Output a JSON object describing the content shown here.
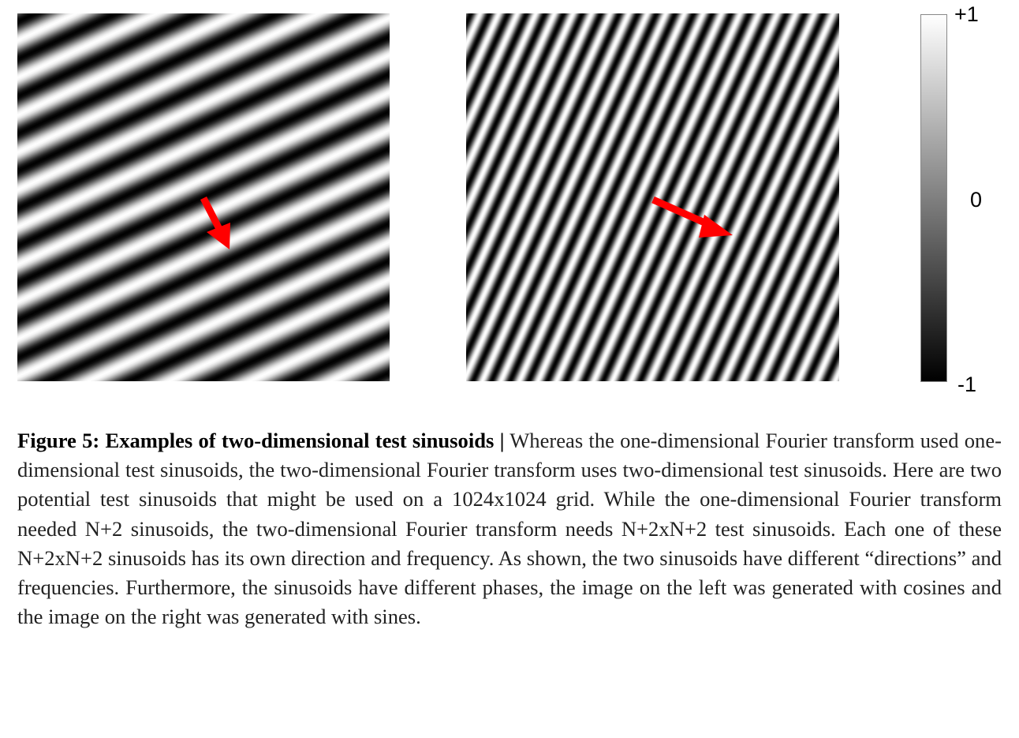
{
  "figure": {
    "colorbar": {
      "top_label": "+1",
      "middle_label": "0",
      "bottom_label": "-1"
    },
    "caption": {
      "label": "Figure 5: Examples of two-dimensional test sinusoids |",
      "text": "Whereas the one-dimensional Fourier transform used one-dimensional test sinusoids, the two-dimensional Fourier transform uses two-dimensional test sinusoids. Here are two potential test sinusoids that might be used on a 1024x1024 grid. While the one-dimensional Fourier transform needed N+2 sinusoids, the two-dimensional Fourier transform needs N+2xN+2 test sinusoids. Each one of these N+2xN+2 sinusoids has its own direction and frequency. As shown, the two sinusoids have different “directions” and frequencies. Furthermore, the sinusoids have different phases, the image on the left was generated with cosines and the image on the right was generated with sines."
    }
  }
}
